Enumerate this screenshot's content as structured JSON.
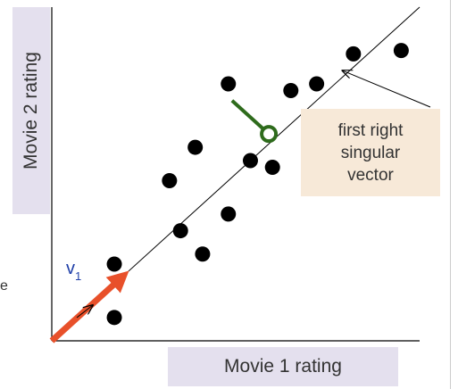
{
  "chart_data": {
    "type": "scatter",
    "xlabel": "Movie 1 rating",
    "ylabel": "Movie 2 rating",
    "xlim": [
      0,
      10
    ],
    "ylim": [
      0,
      10
    ],
    "grid": false,
    "points": [
      {
        "x": 1.7,
        "y": 2.3
      },
      {
        "x": 1.7,
        "y": 0.7
      },
      {
        "x": 3.2,
        "y": 4.8
      },
      {
        "x": 3.5,
        "y": 3.3
      },
      {
        "x": 3.9,
        "y": 5.8
      },
      {
        "x": 4.1,
        "y": 2.6
      },
      {
        "x": 4.8,
        "y": 3.8
      },
      {
        "x": 4.8,
        "y": 7.7
      },
      {
        "x": 5.4,
        "y": 5.4
      },
      {
        "x": 6.0,
        "y": 5.2
      },
      {
        "x": 6.5,
        "y": 7.5
      },
      {
        "x": 7.2,
        "y": 7.7
      },
      {
        "x": 8.2,
        "y": 8.6
      },
      {
        "x": 9.5,
        "y": 8.7
      }
    ],
    "singular_vector_line": {
      "from": [
        0,
        0
      ],
      "to": [
        10,
        10
      ]
    },
    "projection": {
      "from": [
        4.9,
        7.2
      ],
      "to": [
        5.9,
        6.2
      ]
    },
    "v1_arrow": {
      "from": [
        0,
        0
      ],
      "to": [
        2.1,
        2.1
      ]
    },
    "annotation": {
      "text": "first right singular vector",
      "points_to": [
        7.9,
        8.1
      ]
    },
    "v1_label": "v",
    "v1_subscript": "1",
    "colors": {
      "points": "#000000",
      "line": "#000000",
      "projection": "#2e6b1c",
      "v1_arrow": "#e8502a",
      "v1_label": "#1f3fa8",
      "label_box": "#e4e0ee",
      "callout_box": "#f7e9d8"
    }
  },
  "callout_lines": [
    "first right",
    "singular",
    "vector"
  ],
  "edge_fragment": "e"
}
